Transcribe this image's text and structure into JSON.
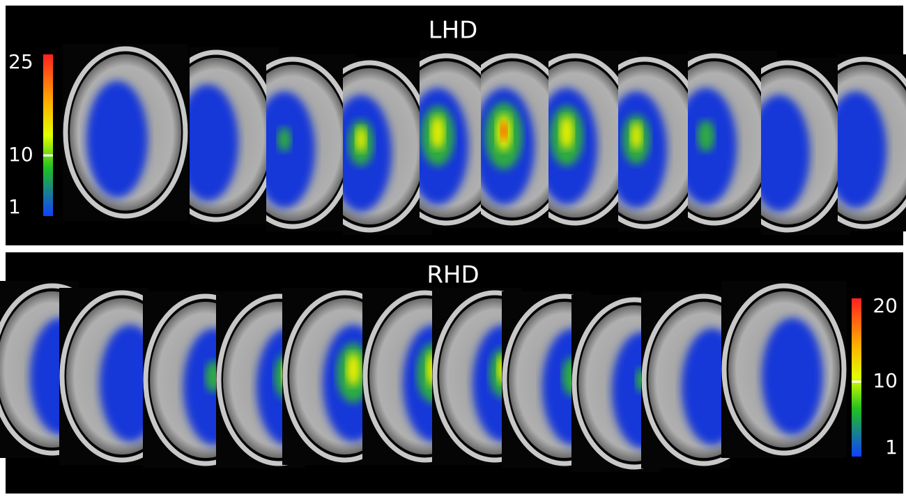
{
  "panels": [
    {
      "title": "LHD",
      "colorbar": {
        "ticks": [
          25,
          10,
          1
        ]
      }
    },
    {
      "title": "RHD",
      "colorbar": {
        "ticks": [
          20,
          10,
          1
        ]
      }
    }
  ]
}
